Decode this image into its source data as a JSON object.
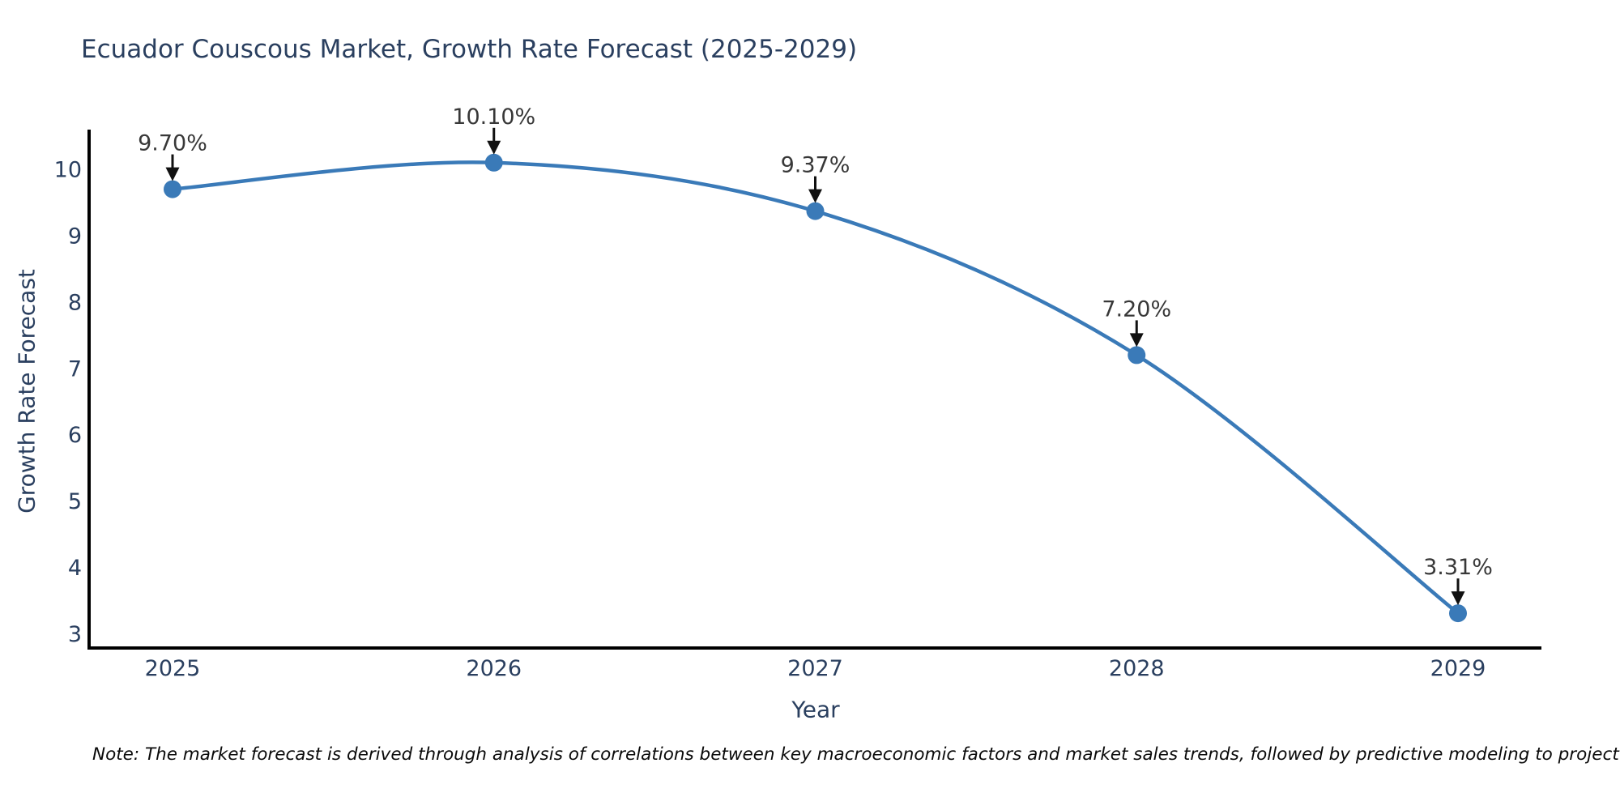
{
  "chart": {
    "title": "Ecuador Couscous Market, Growth Rate Forecast (2025-2029)",
    "note": "Note: The market forecast is derived through analysis of correlations between key macroeconomic factors and market sales trends, followed by predictive modeling to project future sales"
  },
  "chart_data": {
    "type": "line",
    "title": "Ecuador Couscous Market, Growth Rate Forecast (2025-2029)",
    "xlabel": "Year",
    "ylabel": "Growth Rate Forecast",
    "categories": [
      "2025",
      "2026",
      "2027",
      "2028",
      "2029"
    ],
    "values": [
      9.7,
      10.1,
      9.37,
      7.2,
      3.31
    ],
    "point_labels": [
      "9.70%",
      "10.10%",
      "9.37%",
      "7.20%",
      "3.31%"
    ],
    "yticks": [
      3,
      4,
      5,
      6,
      7,
      8,
      9,
      10
    ],
    "ylim": [
      2.787,
      10.598
    ],
    "line_shape": "spline",
    "markers": true,
    "grid": false,
    "legend": "none",
    "annotations_have_arrows": true,
    "colors": {
      "line": "#3A7AB8",
      "marker": "#3A7AB8",
      "axis_line": "#000000",
      "tick_text": "#2a3f5f",
      "title_text": "#2a3f5f",
      "annotation_text": "#383838",
      "arrow": "#111111",
      "background": "#ffffff"
    }
  }
}
